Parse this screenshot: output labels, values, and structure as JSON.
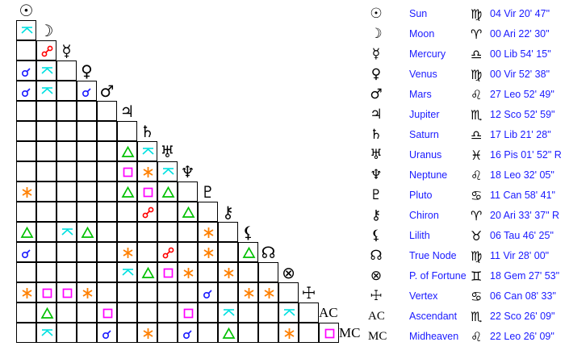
{
  "bodies": [
    {
      "name": "Sun",
      "glyph": "☉",
      "sign_glyph": "♍",
      "position": "04 Vir 20' 47\""
    },
    {
      "name": "Moon",
      "glyph": "☽",
      "sign_glyph": "♈",
      "position": "00 Ari 22' 30\""
    },
    {
      "name": "Mercury",
      "glyph": "☿",
      "sign_glyph": "♎",
      "position": "00 Lib 54' 15\""
    },
    {
      "name": "Venus",
      "glyph": "♀",
      "sign_glyph": "♍",
      "position": "00 Vir 52' 38\""
    },
    {
      "name": "Mars",
      "glyph": "♂",
      "sign_glyph": "♌",
      "position": "27 Leo 52' 49\""
    },
    {
      "name": "Jupiter",
      "glyph": "♃",
      "sign_glyph": "♏",
      "position": "12 Sco 52' 59\""
    },
    {
      "name": "Saturn",
      "glyph": "♄",
      "sign_glyph": "♎",
      "position": "17 Lib 21' 28\""
    },
    {
      "name": "Uranus",
      "glyph": "♅",
      "sign_glyph": "♓",
      "position": "16 Pis 01' 52\" R"
    },
    {
      "name": "Neptune",
      "glyph": "♆",
      "sign_glyph": "♌",
      "position": "18 Leo 32' 05\""
    },
    {
      "name": "Pluto",
      "glyph": "♇",
      "sign_glyph": "♋",
      "position": "11 Can 58' 41\""
    },
    {
      "name": "Chiron",
      "glyph": "⚷",
      "sign_glyph": "♈",
      "position": "20 Ari 33' 37\" R"
    },
    {
      "name": "Lilith",
      "glyph": "⚸",
      "sign_glyph": "♉",
      "position": "06 Tau 46' 25\""
    },
    {
      "name": "True Node",
      "glyph": "☊",
      "sign_glyph": "♍",
      "position": "11 Vir 28' 00\""
    },
    {
      "name": "P. of Fortune",
      "glyph": "⊗",
      "sign_glyph": "♊",
      "position": "18 Gem 27' 53\""
    },
    {
      "name": "Vertex",
      "glyph": "☩",
      "sign_glyph": "♋",
      "position": "06 Can 08' 33\""
    },
    {
      "name": "Ascendant",
      "glyph": "AC",
      "sign_glyph": "♏",
      "position": "22 Sco 26' 09\""
    },
    {
      "name": "Midheaven",
      "glyph": "MC",
      "sign_glyph": "♌",
      "position": "22 Leo 26' 09\""
    }
  ],
  "aspect_colors": {
    "conjunction": "#1a1aff",
    "opposition": "#ff0000",
    "trine": "#00c000",
    "square": "#ff00ff",
    "sextile": "#ff8000",
    "quincunx": "#00e0e0"
  },
  "aspects": [
    [
      1,
      0,
      "quincunx"
    ],
    [
      2,
      1,
      "opposition"
    ],
    [
      3,
      0,
      "conjunction"
    ],
    [
      3,
      1,
      "quincunx"
    ],
    [
      4,
      0,
      "conjunction"
    ],
    [
      4,
      1,
      "quincunx"
    ],
    [
      4,
      3,
      "conjunction"
    ],
    [
      7,
      5,
      "trine"
    ],
    [
      7,
      6,
      "quincunx"
    ],
    [
      8,
      5,
      "square"
    ],
    [
      8,
      6,
      "sextile"
    ],
    [
      8,
      7,
      "quincunx"
    ],
    [
      9,
      0,
      "sextile"
    ],
    [
      9,
      5,
      "trine"
    ],
    [
      9,
      6,
      "square"
    ],
    [
      9,
      7,
      "trine"
    ],
    [
      10,
      6,
      "opposition"
    ],
    [
      10,
      8,
      "trine"
    ],
    [
      11,
      0,
      "trine"
    ],
    [
      11,
      2,
      "quincunx"
    ],
    [
      11,
      3,
      "trine"
    ],
    [
      11,
      9,
      "sextile"
    ],
    [
      12,
      0,
      "conjunction"
    ],
    [
      12,
      5,
      "sextile"
    ],
    [
      12,
      7,
      "opposition"
    ],
    [
      12,
      9,
      "sextile"
    ],
    [
      12,
      11,
      "trine"
    ],
    [
      13,
      5,
      "quincunx"
    ],
    [
      13,
      6,
      "trine"
    ],
    [
      13,
      7,
      "square"
    ],
    [
      13,
      8,
      "sextile"
    ],
    [
      13,
      10,
      "sextile"
    ],
    [
      14,
      0,
      "sextile"
    ],
    [
      14,
      1,
      "square"
    ],
    [
      14,
      2,
      "square"
    ],
    [
      14,
      3,
      "sextile"
    ],
    [
      14,
      9,
      "conjunction"
    ],
    [
      14,
      11,
      "sextile"
    ],
    [
      14,
      12,
      "sextile"
    ],
    [
      15,
      1,
      "trine"
    ],
    [
      15,
      4,
      "square"
    ],
    [
      15,
      8,
      "square"
    ],
    [
      15,
      10,
      "quincunx"
    ],
    [
      15,
      13,
      "quincunx"
    ],
    [
      16,
      1,
      "quincunx"
    ],
    [
      16,
      4,
      "conjunction"
    ],
    [
      16,
      6,
      "sextile"
    ],
    [
      16,
      8,
      "conjunction"
    ],
    [
      16,
      10,
      "trine"
    ],
    [
      16,
      13,
      "sextile"
    ],
    [
      16,
      15,
      "square"
    ]
  ]
}
